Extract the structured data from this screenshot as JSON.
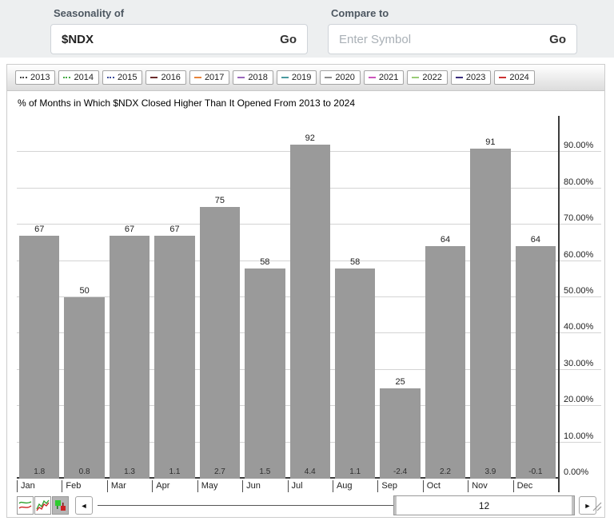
{
  "header": {
    "seasonality_label": "Seasonality of",
    "seasonality_value": "$NDX",
    "seasonality_go": "Go",
    "compare_label": "Compare to",
    "compare_placeholder": "Enter Symbol",
    "compare_go": "Go"
  },
  "legend": {
    "items": [
      {
        "label": "2013",
        "color": "#444444",
        "style": "dots"
      },
      {
        "label": "2014",
        "color": "#44aa44",
        "style": "dots"
      },
      {
        "label": "2015",
        "color": "#3a4a9a",
        "style": "dots"
      },
      {
        "label": "2016",
        "color": "#6b2b2b",
        "style": "dash"
      },
      {
        "label": "2017",
        "color": "#e8833a",
        "style": "dash"
      },
      {
        "label": "2018",
        "color": "#9966bb",
        "style": "dash"
      },
      {
        "label": "2019",
        "color": "#4a9aa0",
        "style": "dash"
      },
      {
        "label": "2020",
        "color": "#8a8a8a",
        "style": "dash"
      },
      {
        "label": "2021",
        "color": "#cc55bb",
        "style": "dash"
      },
      {
        "label": "2022",
        "color": "#99cc77",
        "style": "dash"
      },
      {
        "label": "2023",
        "color": "#3a2d7d",
        "style": "dash"
      },
      {
        "label": "2024",
        "color": "#cc3333",
        "style": "dash"
      }
    ]
  },
  "chart_data": {
    "type": "bar",
    "title": "% of Months in Which $NDX Closed Higher Than It Opened From 2013 to 2024",
    "categories": [
      "Jan",
      "Feb",
      "Mar",
      "Apr",
      "May",
      "Jun",
      "Jul",
      "Aug",
      "Sep",
      "Oct",
      "Nov",
      "Dec"
    ],
    "values": [
      67,
      50,
      67,
      67,
      75,
      58,
      92,
      58,
      25,
      64,
      91,
      64
    ],
    "averages": [
      "1.8",
      "0.8",
      "1.3",
      "1.1",
      "2.7",
      "1.5",
      "4.4",
      "1.1",
      "-2.4",
      "2.2",
      "3.9",
      "-0.1"
    ],
    "bar_color": "#9a9a9a",
    "ylim": [
      0,
      100
    ],
    "grid": true,
    "legend_position": "top",
    "y_ticks": [
      {
        "pct": 90,
        "label": "90.00%"
      },
      {
        "pct": 80,
        "label": "80.00%"
      },
      {
        "pct": 70,
        "label": "70.00%"
      },
      {
        "pct": 60,
        "label": "60.00%"
      },
      {
        "pct": 50,
        "label": "50.00%"
      },
      {
        "pct": 40,
        "label": "40.00%"
      },
      {
        "pct": 30,
        "label": "30.00%"
      },
      {
        "pct": 20,
        "label": "20.00%"
      },
      {
        "pct": 10,
        "label": "10.00%"
      },
      {
        "pct": 0,
        "label": "0.00%"
      }
    ]
  },
  "toolbar": {
    "icons": [
      "smooth-line-chart-icon",
      "cumulative-line-chart-icon",
      "bar-style-icon"
    ],
    "left_arrow": "◄",
    "right_arrow": "►",
    "scroll_value": "12"
  }
}
